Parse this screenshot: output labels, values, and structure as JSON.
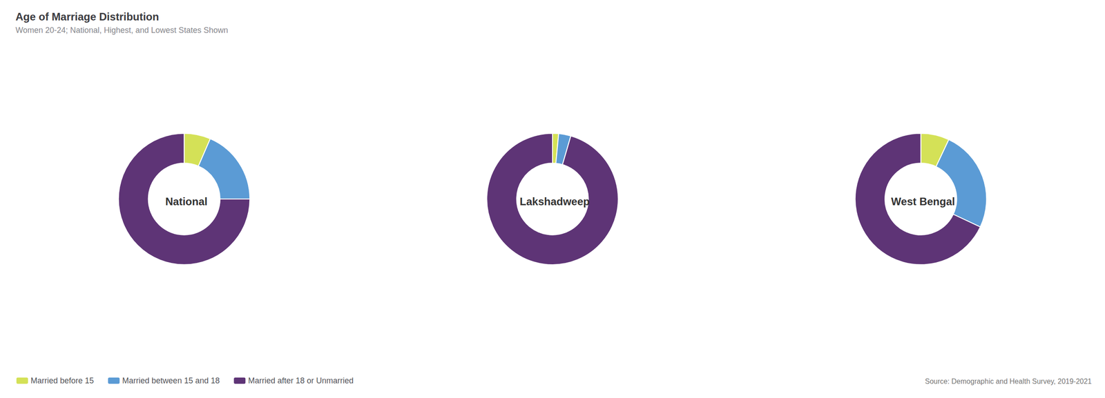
{
  "chart_data": {
    "type": "pie",
    "title": "Age of Marriage Distribution",
    "subtitle": "Women 20-24; National, Highest, and Lowest States Shown",
    "categories": [
      "Married before 15",
      "Married between 15 and 18",
      "Married after 18 or Unmarried"
    ],
    "colors": [
      "#d4e157",
      "#5b9bd5",
      "#5e3476"
    ],
    "series": [
      {
        "name": "National",
        "values": [
          6.5,
          18.5,
          75.0
        ]
      },
      {
        "name": "Lakshadweep",
        "values": [
          1.5,
          3.0,
          95.5
        ]
      },
      {
        "name": "West Bengal",
        "values": [
          7.0,
          25.0,
          68.0
        ]
      }
    ],
    "annotations": [
      "Source: Demographic and Health Survey, 2019-2021"
    ],
    "legend": "bottom left",
    "data_labels": false
  }
}
